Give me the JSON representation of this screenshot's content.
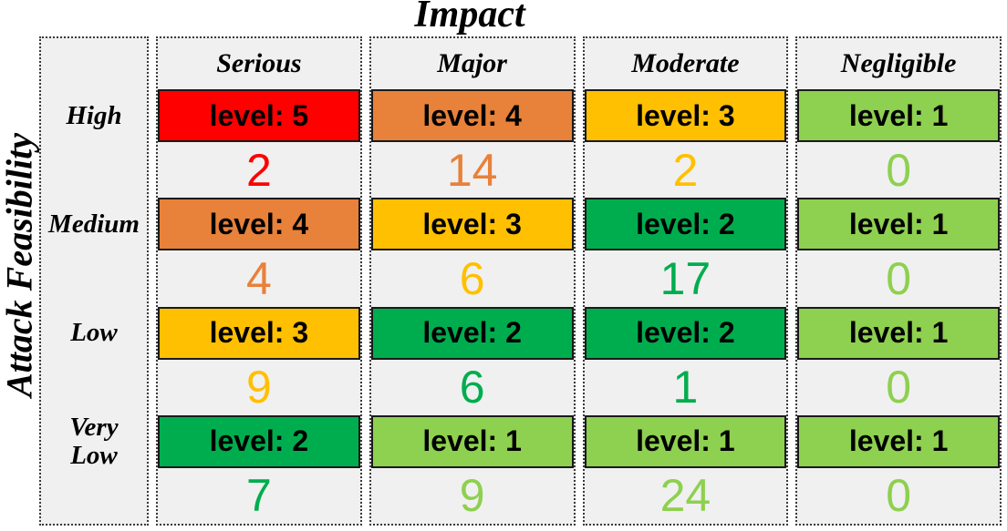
{
  "title": "Impact",
  "y_axis_label": "Attack Feasibility",
  "columns": [
    {
      "label": "Serious"
    },
    {
      "label": "Major"
    },
    {
      "label": "Moderate"
    },
    {
      "label": "Negligible"
    }
  ],
  "rows": [
    {
      "label": "High"
    },
    {
      "label": "Medium"
    },
    {
      "label": "Low"
    },
    {
      "label": "Very\nLow"
    }
  ],
  "palette": {
    "level_5": "#FE0000",
    "level_4": "#E8813A",
    "level_3": "#FFC001",
    "level_2": "#00AD4E",
    "level_1": "#8ED04F",
    "cell_background": "#F0F0F0",
    "box_border": "#1a1a1a"
  },
  "matrix": {
    "cells": [
      [
        {
          "label": "level: 5",
          "count": "2",
          "color": "#FE0000"
        },
        {
          "label": "level: 4",
          "count": "14",
          "color": "#E8813A"
        },
        {
          "label": "level: 3",
          "count": "2",
          "color": "#FFC001"
        },
        {
          "label": "level: 1",
          "count": "0",
          "color": "#8ED04F"
        }
      ],
      [
        {
          "label": "level: 4",
          "count": "4",
          "color": "#E8813A"
        },
        {
          "label": "level: 3",
          "count": "6",
          "color": "#FFC001"
        },
        {
          "label": "level: 2",
          "count": "17",
          "color": "#00AD4E"
        },
        {
          "label": "level: 1",
          "count": "0",
          "color": "#8ED04F"
        }
      ],
      [
        {
          "label": "level: 3",
          "count": "9",
          "color": "#FFC001"
        },
        {
          "label": "level: 2",
          "count": "6",
          "color": "#00AD4E"
        },
        {
          "label": "level: 2",
          "count": "1",
          "color": "#00AD4E"
        },
        {
          "label": "level: 1",
          "count": "0",
          "color": "#8ED04F"
        }
      ],
      [
        {
          "label": "level: 2",
          "count": "7",
          "color": "#00AD4E"
        },
        {
          "label": "level: 1",
          "count": "9",
          "color": "#8ED04F"
        },
        {
          "label": "level: 1",
          "count": "24",
          "color": "#8ED04F"
        },
        {
          "label": "level: 1",
          "count": "0",
          "color": "#8ED04F"
        }
      ]
    ]
  },
  "chart_data": {
    "type": "heatmap",
    "title": "Impact",
    "xlabel": "Impact",
    "ylabel": "Attack Feasibility",
    "columns": [
      "Serious",
      "Major",
      "Moderate",
      "Negligible"
    ],
    "rows": [
      "High",
      "Medium",
      "Low",
      "Very Low"
    ],
    "risk_levels": [
      [
        5,
        4,
        3,
        1
      ],
      [
        4,
        3,
        2,
        1
      ],
      [
        3,
        2,
        2,
        1
      ],
      [
        2,
        1,
        1,
        1
      ]
    ],
    "counts": [
      [
        2,
        14,
        2,
        0
      ],
      [
        4,
        6,
        17,
        0
      ],
      [
        9,
        6,
        1,
        0
      ],
      [
        7,
        9,
        24,
        0
      ]
    ],
    "cell_label_format": "level: {n}",
    "level_colors": {
      "5": "#FE0000",
      "4": "#E8813A",
      "3": "#FFC001",
      "2": "#00AD4E",
      "1": "#8ED04F"
    },
    "legend_position": "none",
    "grid": "dotted column outlines"
  }
}
